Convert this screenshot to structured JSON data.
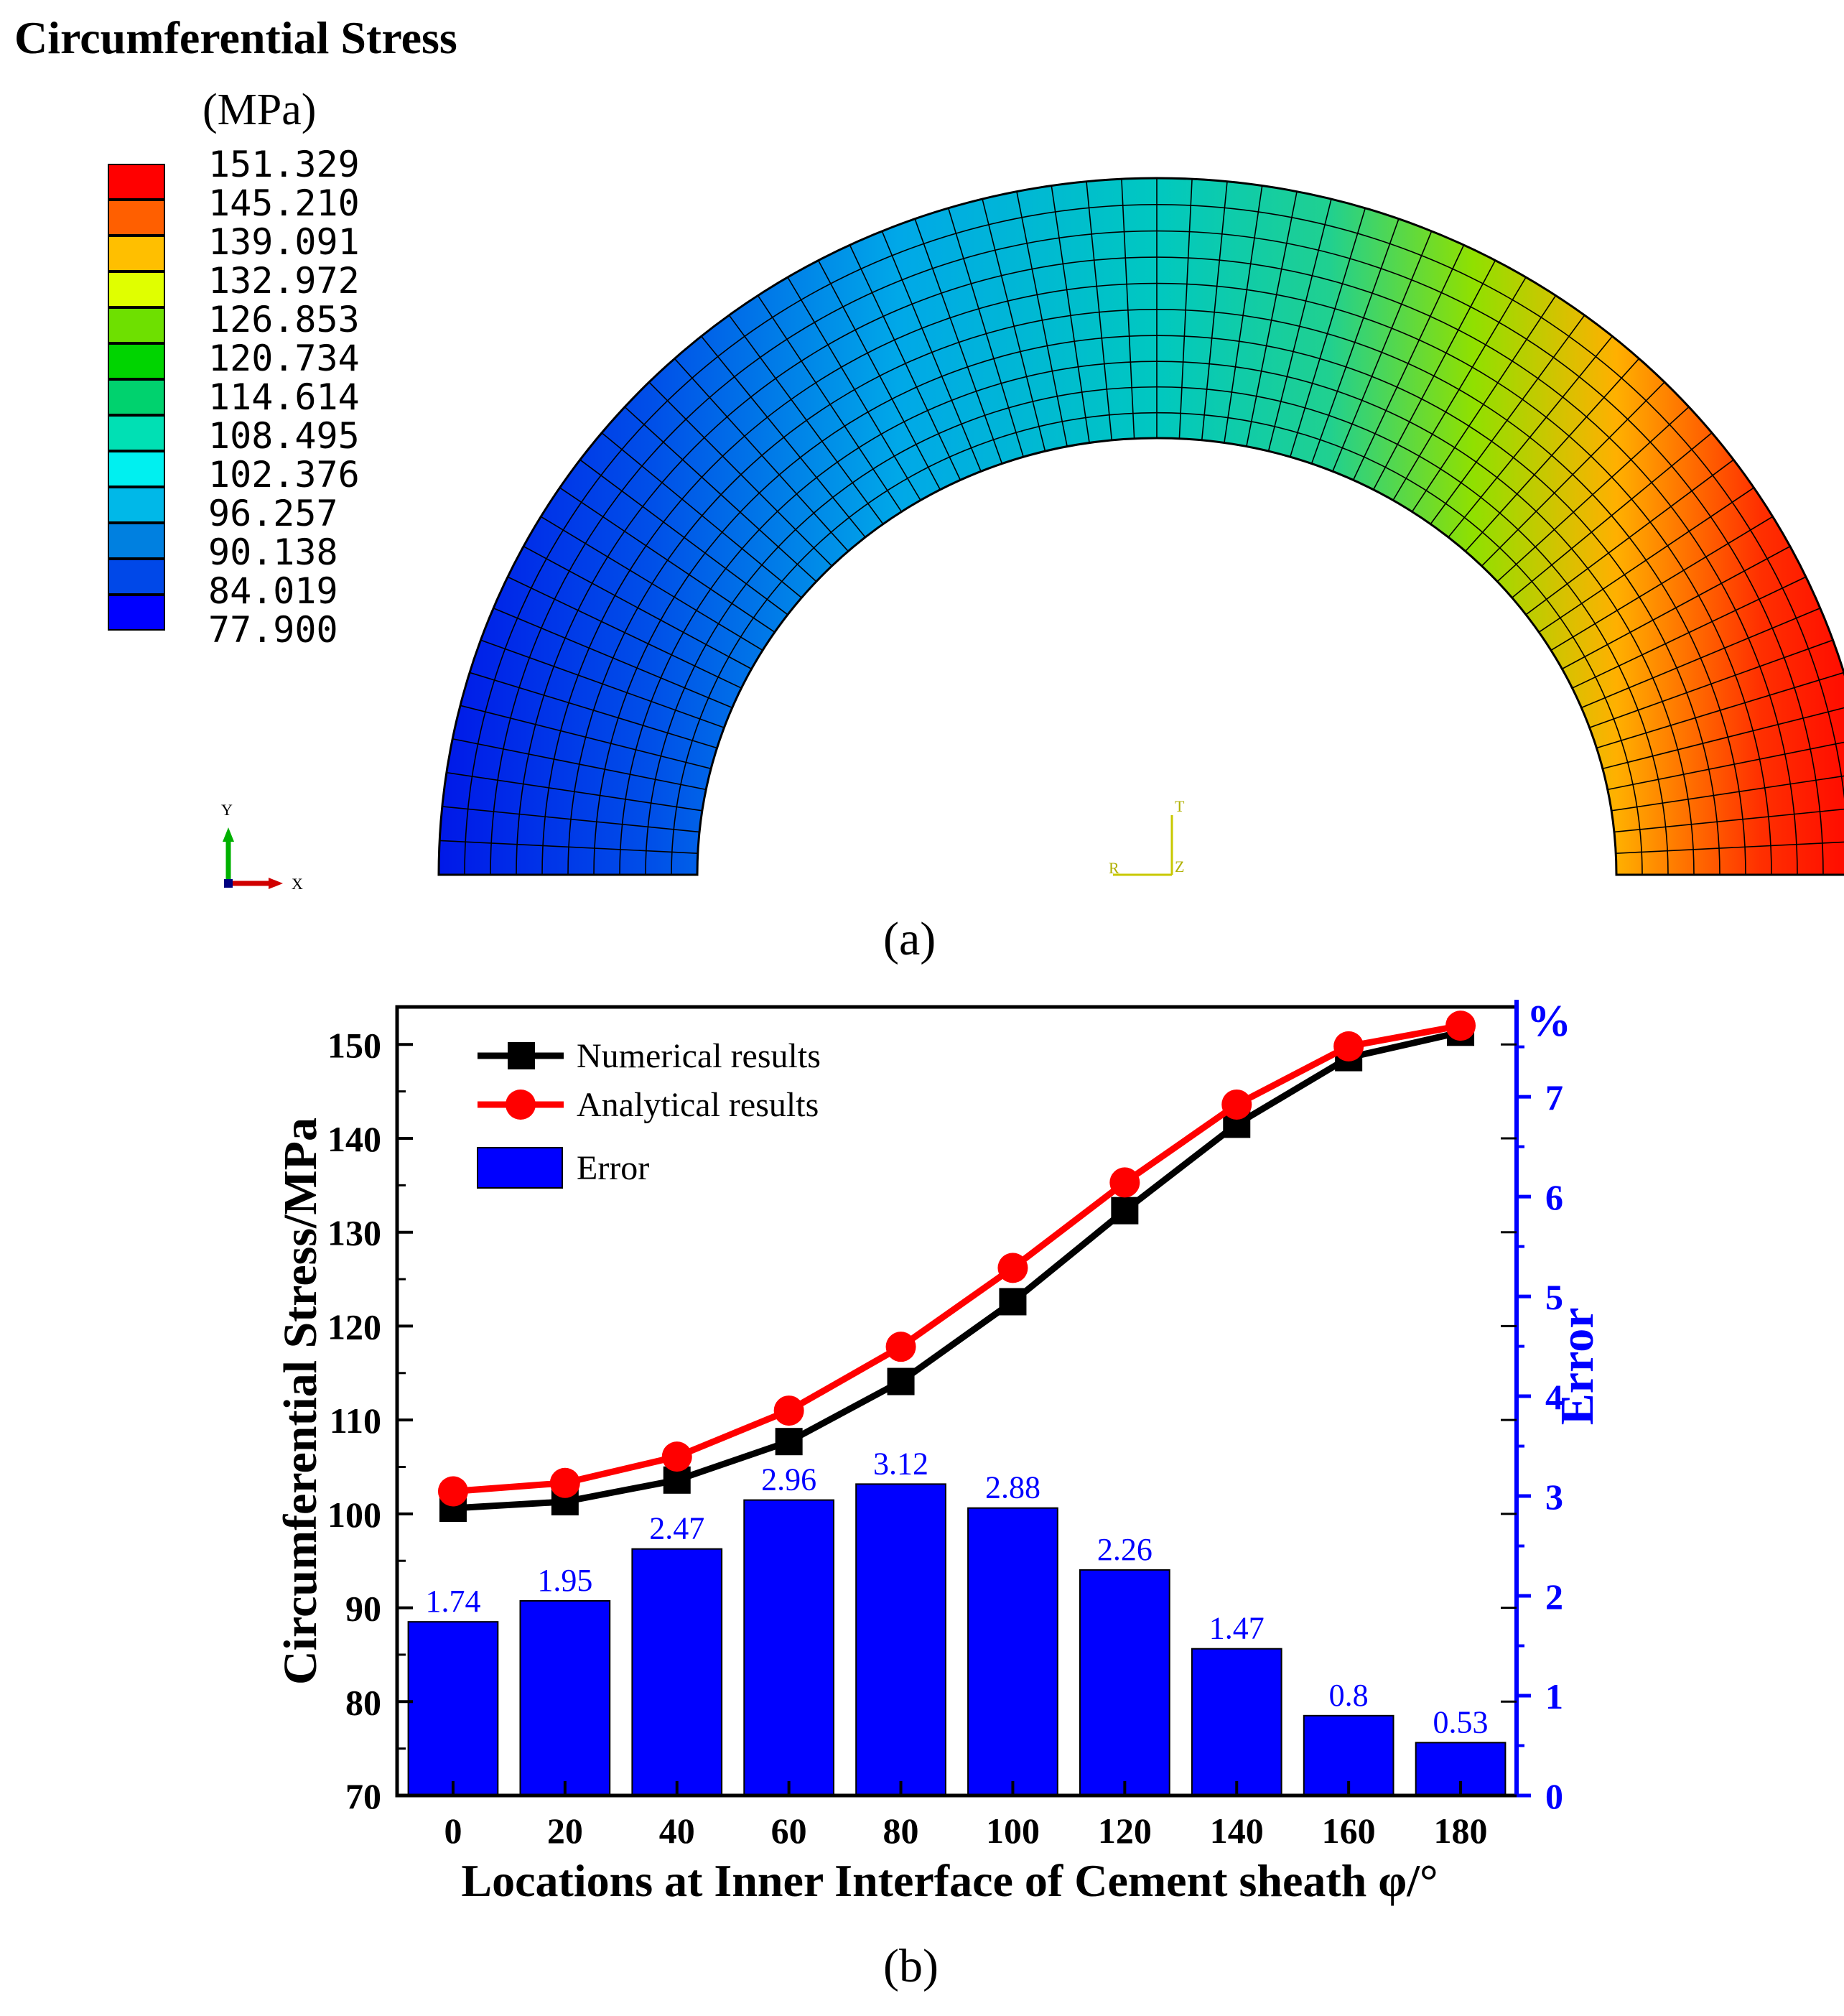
{
  "panel_a": {
    "title": "Circumferential Stress",
    "unit": "(MPa)",
    "legend_values": [
      "151.329",
      "145.210",
      "139.091",
      "132.972",
      "126.853",
      "120.734",
      "114.614",
      "108.495",
      "102.376",
      "96.257",
      "90.138",
      "84.019",
      "77.900"
    ],
    "legend_colors": [
      "#ff0000",
      "#ff5f00",
      "#ffbf00",
      "#e0ff00",
      "#6ee000",
      "#00d400",
      "#00d26e",
      "#00e0b4",
      "#00f0f0",
      "#00b8e8",
      "#0080e0",
      "#0048e8",
      "#0000ff"
    ],
    "axis_y": "Y",
    "axis_x": "X",
    "triad_t": "T",
    "triad_r": "R",
    "triad_z": "Z",
    "caption": "(a)"
  },
  "chart_data": {
    "type": "bar",
    "categories": [
      "0",
      "20",
      "40",
      "60",
      "80",
      "100",
      "120",
      "140",
      "160",
      "180"
    ],
    "x": [
      0,
      20,
      40,
      60,
      80,
      100,
      120,
      140,
      160,
      180
    ],
    "series": [
      {
        "name": "Numerical results",
        "type": "line",
        "axis": "left",
        "color": "#000000",
        "marker": "square",
        "values": [
          100.6,
          101.3,
          103.6,
          107.7,
          114.1,
          122.6,
          132.3,
          141.5,
          148.6,
          151.3
        ]
      },
      {
        "name": "Analytical results",
        "type": "line",
        "axis": "left",
        "color": "#ff0000",
        "marker": "circle",
        "values": [
          102.4,
          103.3,
          106.1,
          111.0,
          117.8,
          126.2,
          135.3,
          143.6,
          149.8,
          152.0
        ]
      },
      {
        "name": "Error",
        "type": "bar",
        "axis": "right",
        "color": "#0000ff",
        "values": [
          1.74,
          1.95,
          2.47,
          2.96,
          3.12,
          2.88,
          2.26,
          1.47,
          0.8,
          0.53
        ]
      }
    ],
    "bar_labels": [
      "1.74",
      "1.95",
      "2.47",
      "2.96",
      "3.12",
      "2.88",
      "2.26",
      "1.47",
      "0.8",
      "0.53"
    ],
    "xlabel": "Locations at Inner Interface of Cement sheath φ/°",
    "ylabel": "Circumferential Stress/MPa",
    "ylabel_right": "Error",
    "yunit_right": "%",
    "ylim": [
      70,
      154
    ],
    "ylim_right": [
      0,
      7.9
    ],
    "yticks": [
      70,
      80,
      90,
      100,
      110,
      120,
      130,
      140,
      150
    ],
    "yticks_right": [
      0,
      1,
      2,
      3,
      4,
      5,
      6,
      7
    ],
    "legend": "top-left",
    "caption": "(b)"
  }
}
